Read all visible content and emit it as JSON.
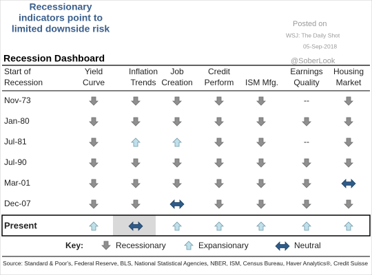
{
  "header": {
    "title": [
      "Recessionary",
      "indicators point to",
      "limited downside risk"
    ],
    "posted": [
      "Posted on",
      "WSJ: The Daily Shot",
      "05-Sep-2018"
    ],
    "handle": "@SoberLook"
  },
  "table": {
    "title": "Recession Dashboard",
    "columns": [
      [
        "Start of",
        "Recession"
      ],
      [
        "Yield",
        "Curve"
      ],
      [
        "Inflation",
        "Trends"
      ],
      [
        "Job",
        "Creation"
      ],
      [
        "Credit",
        "Perform"
      ],
      [
        "ISM Mfg."
      ],
      [
        "Earnings",
        "Quality"
      ],
      [
        "Housing",
        "Market"
      ]
    ],
    "rows": [
      {
        "start": "Nov-73",
        "earnings_quality": "--"
      },
      {
        "start": "Jan-80"
      },
      {
        "start": "Jul-81",
        "earnings_quality": "--"
      },
      {
        "start": "Jul-90"
      },
      {
        "start": "Mar-01"
      },
      {
        "start": "Dec-07"
      },
      {
        "start": "Present"
      }
    ]
  },
  "key": {
    "title": "Key:",
    "items": [
      "Recessionary",
      "Expansionary",
      "Neutral"
    ]
  },
  "source": "Source: Standard & Poor's, Federal Reserve, BLS, National Statistical Agencies, NBER, ISM, Census Bureau, Haver Analytics®, Credit Suisse"
}
